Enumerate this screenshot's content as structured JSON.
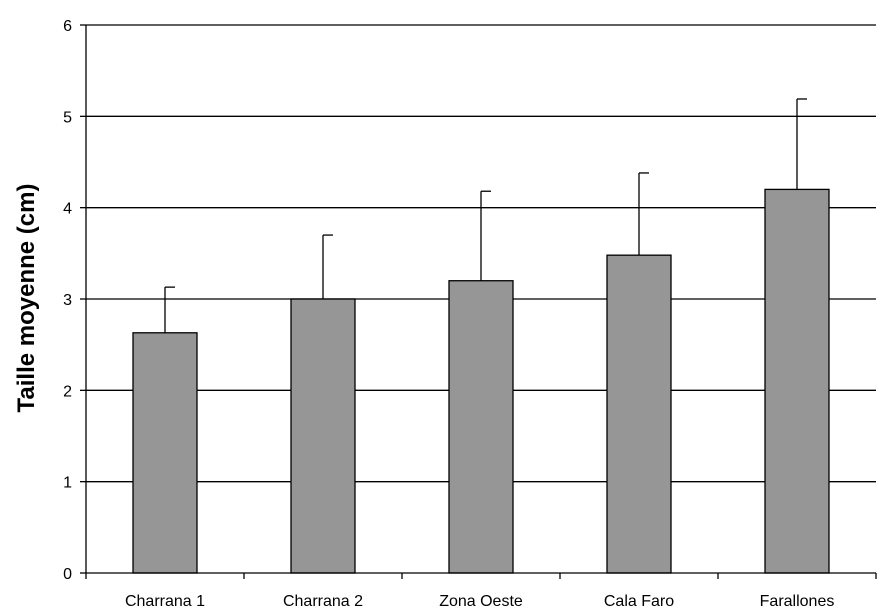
{
  "chart_data": {
    "type": "bar",
    "title": "",
    "xlabel": "",
    "ylabel": "Taille moyenne (cm)",
    "categories": [
      "Charrana 1",
      "Charrana 2",
      "Zona Oeste",
      "Cala Faro",
      "Farallones"
    ],
    "values": [
      2.63,
      3.0,
      3.2,
      3.48,
      4.2
    ],
    "error_upper": [
      0.5,
      0.7,
      0.98,
      0.9,
      0.99
    ],
    "ylim": [
      0,
      6
    ],
    "yticks": [
      "0",
      "1",
      "2",
      "3",
      "4",
      "5",
      "6"
    ],
    "grid": true,
    "bar_color": "#969696",
    "legend": "none"
  }
}
